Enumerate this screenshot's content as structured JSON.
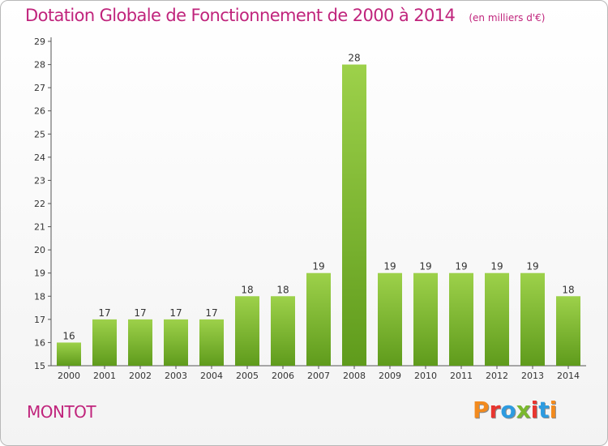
{
  "header": {
    "title": "Dotation Globale de Fonctionnement de 2000 à 2014",
    "unit": "(en milliers d'€)"
  },
  "footer": {
    "place": "MONTOT",
    "brand": [
      "P",
      "r",
      "o",
      "x",
      "i",
      "t",
      "i"
    ],
    "brand_colors": [
      "#f28a1e",
      "#e8352f",
      "#2d9be0",
      "#7ab82e",
      "#e8352f",
      "#2d9be0",
      "#f28a1e"
    ]
  },
  "colors": {
    "bar_light": "#9dd14a",
    "bar_dark": "#5f9b1c",
    "accent": "#c0247c"
  },
  "chart_data": {
    "type": "bar",
    "title": "Dotation Globale de Fonctionnement de 2000 à 2014",
    "ylabel": "(en milliers d'€)",
    "xlabel": "",
    "categories": [
      "2000",
      "2001",
      "2002",
      "2003",
      "2004",
      "2005",
      "2006",
      "2007",
      "2008",
      "2009",
      "2010",
      "2011",
      "2012",
      "2013",
      "2014"
    ],
    "values": [
      16,
      17,
      17,
      17,
      17,
      18,
      18,
      19,
      28,
      19,
      19,
      19,
      19,
      19,
      18
    ],
    "ylim": [
      15,
      29
    ],
    "yticks": [
      15,
      16,
      17,
      18,
      19,
      20,
      21,
      22,
      23,
      24,
      25,
      26,
      27,
      28,
      29
    ],
    "grid": false
  }
}
